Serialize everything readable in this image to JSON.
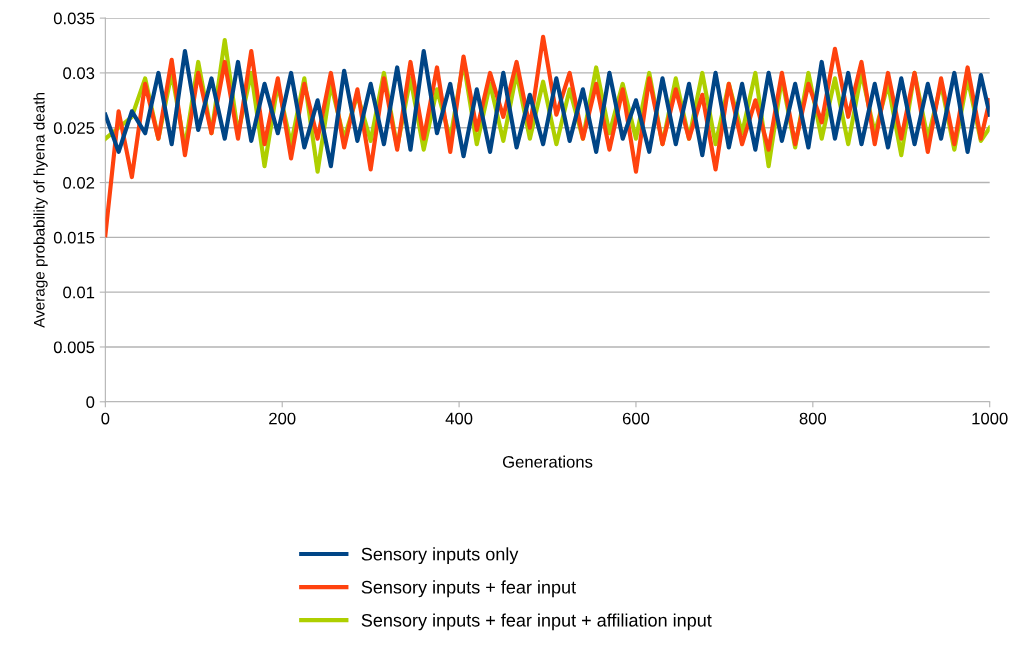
{
  "chart_data": {
    "type": "line",
    "xlabel": "Generations",
    "ylabel": "Average probability of hyena death",
    "x": [
      0,
      15,
      30,
      45,
      60,
      75,
      90,
      105,
      120,
      135,
      150,
      165,
      180,
      195,
      210,
      225,
      240,
      255,
      270,
      285,
      300,
      315,
      330,
      345,
      360,
      375,
      390,
      405,
      420,
      435,
      450,
      465,
      480,
      495,
      510,
      525,
      540,
      555,
      570,
      585,
      600,
      615,
      630,
      645,
      660,
      675,
      690,
      705,
      720,
      735,
      750,
      765,
      780,
      795,
      810,
      825,
      840,
      855,
      870,
      885,
      900,
      915,
      930,
      945,
      960,
      975,
      990,
      1000
    ],
    "series": [
      {
        "name": "Sensory inputs only",
        "color": "#004586",
        "values": [
          0.0262,
          0.0228,
          0.0265,
          0.0245,
          0.03,
          0.0235,
          0.032,
          0.0248,
          0.0295,
          0.024,
          0.031,
          0.0238,
          0.029,
          0.0245,
          0.03,
          0.0232,
          0.0275,
          0.0215,
          0.0302,
          0.0238,
          0.029,
          0.0235,
          0.0305,
          0.023,
          0.032,
          0.0245,
          0.029,
          0.0224,
          0.0285,
          0.0228,
          0.03,
          0.0232,
          0.028,
          0.0235,
          0.0295,
          0.0238,
          0.0285,
          0.0228,
          0.03,
          0.024,
          0.0275,
          0.0228,
          0.0295,
          0.0235,
          0.029,
          0.0225,
          0.03,
          0.0232,
          0.029,
          0.023,
          0.03,
          0.0238,
          0.029,
          0.0232,
          0.031,
          0.024,
          0.03,
          0.0235,
          0.029,
          0.0232,
          0.0295,
          0.0235,
          0.029,
          0.024,
          0.03,
          0.0228,
          0.0298,
          0.0262
        ]
      },
      {
        "name": "Sensory inputs + fear input",
        "color": "#ff420e",
        "values": [
          0.0152,
          0.0265,
          0.0205,
          0.029,
          0.024,
          0.0312,
          0.0225,
          0.03,
          0.0245,
          0.031,
          0.024,
          0.032,
          0.0235,
          0.0295,
          0.0222,
          0.029,
          0.024,
          0.03,
          0.0232,
          0.0285,
          0.0212,
          0.0295,
          0.023,
          0.031,
          0.024,
          0.0305,
          0.0228,
          0.0315,
          0.0248,
          0.03,
          0.026,
          0.031,
          0.025,
          0.0333,
          0.0262,
          0.03,
          0.024,
          0.029,
          0.023,
          0.0285,
          0.021,
          0.0295,
          0.0235,
          0.0285,
          0.024,
          0.028,
          0.0212,
          0.029,
          0.0235,
          0.0275,
          0.023,
          0.03,
          0.0235,
          0.029,
          0.0255,
          0.0322,
          0.026,
          0.031,
          0.0235,
          0.03,
          0.024,
          0.03,
          0.0228,
          0.0295,
          0.0235,
          0.0305,
          0.024,
          0.0275
        ]
      },
      {
        "name": "Sensory inputs + fear input + affiliation input",
        "color": "#aecf00",
        "values": [
          0.024,
          0.025,
          0.026,
          0.0295,
          0.024,
          0.03,
          0.0232,
          0.031,
          0.0245,
          0.033,
          0.0245,
          0.03,
          0.0215,
          0.029,
          0.0235,
          0.0295,
          0.021,
          0.029,
          0.024,
          0.028,
          0.0238,
          0.03,
          0.0232,
          0.0295,
          0.023,
          0.0285,
          0.024,
          0.031,
          0.0235,
          0.029,
          0.0238,
          0.03,
          0.024,
          0.0292,
          0.0235,
          0.0285,
          0.024,
          0.0305,
          0.0245,
          0.029,
          0.024,
          0.03,
          0.0235,
          0.0295,
          0.024,
          0.03,
          0.0235,
          0.029,
          0.0245,
          0.03,
          0.0215,
          0.0295,
          0.0232,
          0.03,
          0.024,
          0.0295,
          0.0235,
          0.03,
          0.0245,
          0.029,
          0.0225,
          0.03,
          0.024,
          0.029,
          0.023,
          0.0295,
          0.0238,
          0.025
        ]
      }
    ],
    "xlim": [
      0,
      1000
    ],
    "xticks": [
      0,
      200,
      400,
      600,
      800,
      1000
    ],
    "ylim": [
      0,
      0.035
    ],
    "yticks": [
      0,
      0.005,
      0.01,
      0.015,
      0.02,
      0.025,
      0.03,
      0.035
    ],
    "grid": "y",
    "legend": "bottom",
    "line_style": "solid",
    "marker": "none"
  }
}
